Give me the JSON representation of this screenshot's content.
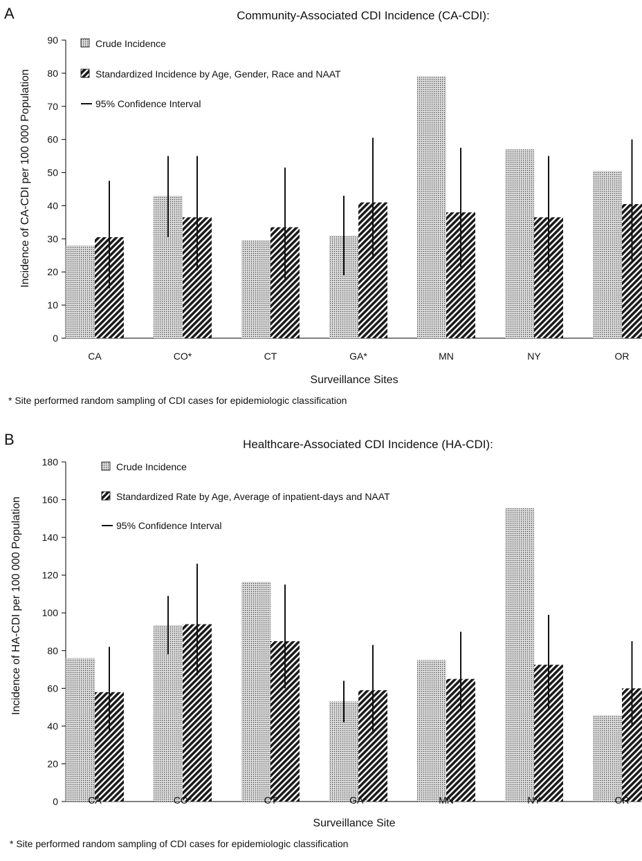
{
  "colors": {
    "crude_fill": "#d6d6d6",
    "crude_dot": "#3a3a3a",
    "standardized_stripe": "#1a1a1a",
    "axis": "#000000",
    "error_bar": "#111111"
  },
  "chart_data": [
    {
      "panel_letter": "A",
      "type": "bar",
      "title": "Community-Associated CDI Incidence (CA-CDI):",
      "xlabel": "Surveillance Sites",
      "ylabel": "Incidence of CA-CDI per 100 000 Population",
      "ylim": [
        0,
        90
      ],
      "yticks": [
        0,
        10,
        20,
        30,
        40,
        50,
        60,
        70,
        80,
        90
      ],
      "categories": [
        "CA",
        "CO*",
        "CT",
        "GA*",
        "MN",
        "NY",
        "OR"
      ],
      "series": [
        {
          "name": "Crude Incidence",
          "pattern": "dots",
          "values": [
            28,
            43,
            29.5,
            31,
            79,
            57,
            50.5
          ],
          "ci": [
            null,
            [
              30.5,
              55
            ],
            null,
            [
              19,
              43
            ],
            null,
            null,
            null
          ]
        },
        {
          "name": "Standardized Incidence by Age, Gender, Race and NAAT",
          "pattern": "stripes",
          "values": [
            30.5,
            36.5,
            33.5,
            41,
            38,
            36.5,
            40.5
          ],
          "ci": [
            [
              15,
              47.5
            ],
            [
              20.5,
              55
            ],
            [
              18,
              51.5
            ],
            [
              24,
              60.5
            ],
            [
              21.5,
              57.5
            ],
            [
              20,
              55
            ],
            [
              23,
              60
            ]
          ]
        }
      ],
      "legend": [
        "Crude Incidence",
        "Standardized Incidence by Age, Gender, Race and NAAT",
        "95% Confidence Interval"
      ],
      "legend_position": "top-left",
      "grid": false,
      "footnote": "* Site performed random sampling of CDI cases for epidemiologic classification"
    },
    {
      "panel_letter": "B",
      "type": "bar",
      "title": "Healthcare-Associated CDI Incidence (HA-CDI):",
      "xlabel": "Surveillance Site",
      "ylabel": "Incidence of HA-CDI per 100 000 Population",
      "ylim": [
        0,
        180
      ],
      "yticks": [
        0,
        20,
        40,
        60,
        80,
        100,
        120,
        140,
        160,
        180
      ],
      "categories": [
        "CA",
        "CO*",
        "CT",
        "GA*",
        "MN",
        "NY",
        "OR"
      ],
      "series": [
        {
          "name": "Crude Incidence",
          "pattern": "dots",
          "values": [
            76,
            93.5,
            116.5,
            53,
            75,
            155.5,
            45.5
          ],
          "ci": [
            null,
            [
              78,
              109
            ],
            null,
            [
              42,
              64
            ],
            null,
            null,
            null
          ]
        },
        {
          "name": "Standardized Rate by Age, Average of inpatient-days and NAAT",
          "pattern": "stripes",
          "values": [
            58,
            94,
            85,
            59,
            65,
            72.5,
            60
          ],
          "ci": [
            [
              37,
              82
            ],
            [
              67,
              126
            ],
            [
              60,
              115
            ],
            [
              36,
              83
            ],
            [
              48,
              90
            ],
            [
              49,
              99
            ],
            [
              40,
              85
            ]
          ]
        }
      ],
      "legend": [
        "Crude Incidence",
        "Standardized Rate by Age, Average of inpatient-days and NAAT",
        "95% Confidence Interval"
      ],
      "legend_position": "top-left",
      "grid": false,
      "footnote": "* Site performed random sampling of CDI cases for epidemiologic classification"
    }
  ]
}
